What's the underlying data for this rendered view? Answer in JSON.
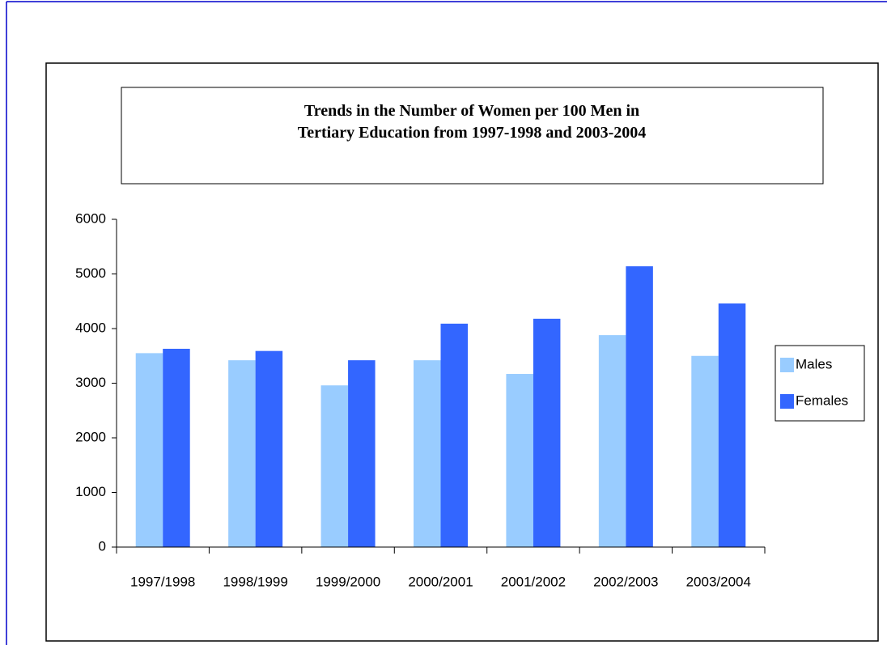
{
  "chart_data": {
    "type": "bar",
    "title": "Trends in the Number of Women per 100 Men in Tertiary Education from 1997-1998 and 2003-2004",
    "categories": [
      "1997/1998",
      "1998/1999",
      "1999/2000",
      "2000/2001",
      "2001/2002",
      "2002/2003",
      "2003/2004"
    ],
    "series": [
      {
        "name": "Males",
        "color": "#99ccff",
        "values": [
          3550,
          3420,
          2960,
          3420,
          3170,
          3880,
          3500
        ]
      },
      {
        "name": "Females",
        "color": "#3366ff",
        "values": [
          3630,
          3590,
          3420,
          4090,
          4180,
          5140,
          4460
        ]
      }
    ],
    "ylim": [
      0,
      6000
    ],
    "yticks": [
      0,
      1000,
      2000,
      3000,
      4000,
      5000,
      6000
    ],
    "grid": false,
    "legend": "right"
  }
}
